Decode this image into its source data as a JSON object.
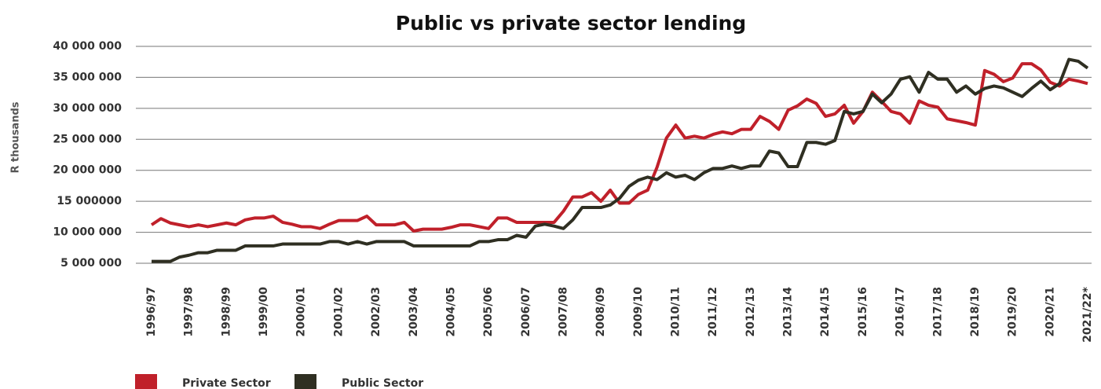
{
  "chart_data": {
    "type": "line",
    "title": "Public vs private sector lending",
    "y_label": "R thousands",
    "categories": [
      "1996/97",
      null,
      null,
      null,
      "1997/98",
      null,
      null,
      null,
      "1998/99",
      null,
      null,
      null,
      "1999/00",
      null,
      null,
      null,
      "2000/01",
      null,
      null,
      null,
      "2001/02",
      null,
      null,
      null,
      "2002/03",
      null,
      null,
      null,
      "2003/04",
      null,
      null,
      null,
      "2004/05",
      null,
      null,
      null,
      "2005/06",
      null,
      null,
      null,
      "2006/07",
      null,
      null,
      null,
      "2007/08",
      null,
      null,
      null,
      "2008/09",
      null,
      null,
      null,
      "2009/10",
      null,
      null,
      null,
      "2010/11",
      null,
      null,
      null,
      "2011/12",
      null,
      null,
      null,
      "2012/13",
      null,
      null,
      null,
      "2013/14",
      null,
      null,
      null,
      "2014/15",
      null,
      null,
      null,
      "2015/16",
      null,
      null,
      null,
      "2016/17",
      null,
      null,
      null,
      "2017/18",
      null,
      null,
      null,
      "2018/19",
      null,
      null,
      null,
      "2019/20",
      null,
      null,
      null,
      "2020/21",
      null,
      null,
      null,
      "2021/22*"
    ],
    "series": [
      {
        "name": "Private Sector",
        "color": "#c0202a",
        "values": [
          11200000,
          12200000,
          11500000,
          11200000,
          10900000,
          11200000,
          10900000,
          11200000,
          11500000,
          11200000,
          12000000,
          12300000,
          12300000,
          12600000,
          11600000,
          11300000,
          10900000,
          10900000,
          10600000,
          11300000,
          11900000,
          11900000,
          11900000,
          12600000,
          11200000,
          11200000,
          11200000,
          11600000,
          10200000,
          10500000,
          10500000,
          10500000,
          10800000,
          11200000,
          11200000,
          10900000,
          10600000,
          12300000,
          12300000,
          11600000,
          11600000,
          11600000,
          11600000,
          11600000,
          13400000,
          15700000,
          15700000,
          16400000,
          15000000,
          16800000,
          14700000,
          14700000,
          16100000,
          16800000,
          20500000,
          25200000,
          27300000,
          25200000,
          25500000,
          25200000,
          25800000,
          26200000,
          25900000,
          26600000,
          26600000,
          28700000,
          27900000,
          26600000,
          29700000,
          30400000,
          31500000,
          30800000,
          28700000,
          29100000,
          30500000,
          27600000,
          29500000,
          32600000,
          31100000,
          29500000,
          29100000,
          27600000,
          31200000,
          30500000,
          30200000,
          28300000,
          28000000,
          27700000,
          27300000,
          36100000,
          35500000,
          34300000,
          34900000,
          37200000,
          37200000,
          36200000,
          34200000,
          33600000,
          34700000,
          34400000,
          34000000
        ]
      },
      {
        "name": "Public Sector",
        "color": "#2f2f22",
        "values": [
          5300000,
          5300000,
          5300000,
          6000000,
          6300000,
          6700000,
          6700000,
          7100000,
          7100000,
          7100000,
          7800000,
          7800000,
          7800000,
          7800000,
          8100000,
          8100000,
          8100000,
          8100000,
          8100000,
          8500000,
          8500000,
          8100000,
          8500000,
          8100000,
          8500000,
          8500000,
          8500000,
          8500000,
          7800000,
          7800000,
          7800000,
          7800000,
          7800000,
          7800000,
          7800000,
          8500000,
          8500000,
          8800000,
          8800000,
          9500000,
          9200000,
          11000000,
          11300000,
          11000000,
          10600000,
          12000000,
          14000000,
          14000000,
          14000000,
          14400000,
          15500000,
          17400000,
          18400000,
          18900000,
          18500000,
          19600000,
          18900000,
          19200000,
          18500000,
          19600000,
          20300000,
          20300000,
          20700000,
          20300000,
          20700000,
          20700000,
          23100000,
          22800000,
          20600000,
          20600000,
          24500000,
          24500000,
          24200000,
          24800000,
          29500000,
          29100000,
          29500000,
          32300000,
          30900000,
          32300000,
          34700000,
          35100000,
          32600000,
          35800000,
          34700000,
          34700000,
          32600000,
          33600000,
          32300000,
          33200000,
          33600000,
          33300000,
          32600000,
          31900000,
          33200000,
          34400000,
          33000000,
          34000000,
          37900000,
          37600000,
          36500000
        ]
      }
    ],
    "ylim": [
      5000000,
      40000000
    ],
    "yticks": [
      {
        "value": 5000000,
        "label": "5 000 000"
      },
      {
        "value": 10000000,
        "label": "10 000 000"
      },
      {
        "value": 15000000,
        "label": "15 000000"
      },
      {
        "value": 20000000,
        "label": "20 000 000"
      },
      {
        "value": 25000000,
        "label": "25 000 000"
      },
      {
        "value": 30000000,
        "label": "30 000 000"
      },
      {
        "value": 35000000,
        "label": "35 000 000"
      },
      {
        "value": 40000000,
        "label": "40 000 000"
      }
    ],
    "grid": true
  }
}
